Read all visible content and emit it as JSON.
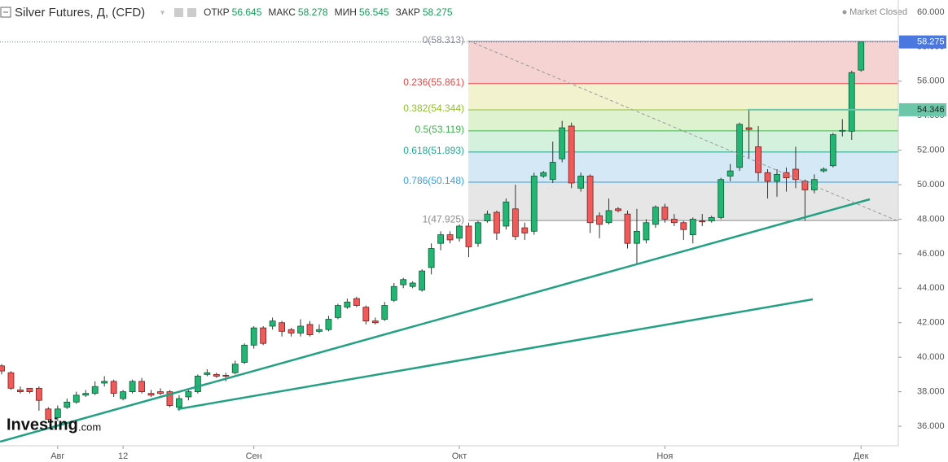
{
  "chart_data": {
    "type": "candlestick",
    "title": "Silver Futures, Д, (CFD)",
    "header_stats": [
      {
        "label": "ОТКР",
        "value": 56.645
      },
      {
        "label": "МАКС",
        "value": 58.278
      },
      {
        "label": "МИН",
        "value": 56.545
      },
      {
        "label": "ЗАКР",
        "value": 58.275
      }
    ],
    "status": "Market Closed",
    "logo": {
      "main": "Investing",
      "suffix": ".com"
    },
    "up_color": "#22b573",
    "down_color": "#ef5a5a",
    "categories": [
      null,
      null,
      null,
      null,
      null,
      null,
      "Авг",
      null,
      null,
      null,
      null,
      null,
      null,
      "12",
      null,
      null,
      null,
      null,
      null,
      null,
      null,
      null,
      null,
      null,
      null,
      null,
      null,
      "Сен",
      null,
      null,
      null,
      null,
      null,
      null,
      null,
      null,
      null,
      null,
      null,
      null,
      null,
      null,
      null,
      null,
      null,
      null,
      null,
      null,
      null,
      "Окт",
      null,
      null,
      null,
      null,
      null,
      null,
      null,
      null,
      null,
      null,
      null,
      null,
      null,
      null,
      null,
      null,
      null,
      null,
      null,
      null,
      null,
      "Ноя",
      null,
      null,
      null,
      null,
      null,
      null,
      null,
      null,
      null,
      null,
      null,
      null,
      null,
      null,
      null,
      null,
      null,
      null,
      null,
      null,
      "Дек"
    ],
    "open": [
      39.5,
      39.1,
      38.1,
      38.2,
      38.2,
      37.0,
      36.5,
      37.1,
      37.4,
      37.8,
      37.9,
      38.5,
      38.6,
      37.6,
      38.0,
      38.6,
      37.9,
      38.0,
      38.0,
      37.1,
      37.7,
      38.0,
      39.0,
      39.0,
      38.95,
      39.1,
      39.7,
      40.7,
      41.7,
      41.8,
      42.0,
      41.6,
      41.4,
      41.9,
      41.5,
      41.6,
      42.3,
      42.9,
      43.4,
      42.9,
      42.1,
      42.2,
      43.3,
      44.2,
      44.1,
      43.9,
      45.2,
      46.6,
      47.1,
      46.9,
      47.6,
      46.6,
      47.9,
      48.4,
      47.6,
      48.6,
      47.5,
      47.3,
      50.5,
      50.3,
      51.5,
      53.4,
      49.8,
      50.5,
      48.2,
      47.8,
      48.6,
      48.3,
      46.6,
      46.8,
      47.7,
      48.7,
      48.0,
      47.8,
      47.1,
      47.9,
      47.9,
      48.1,
      50.5,
      51.0,
      53.3,
      52.2,
      50.7,
      50.2,
      50.7,
      50.9,
      50.2,
      49.7,
      50.8,
      51.1,
      53.1,
      53.1,
      56.645
    ],
    "high": [
      39.6,
      39.2,
      38.3,
      38.2,
      38.3,
      37.1,
      37.2,
      37.6,
      38.0,
      38.1,
      38.6,
      38.9,
      38.7,
      38.1,
      38.7,
      38.8,
      38.1,
      38.2,
      38.1,
      37.8,
      38.1,
      39.0,
      39.3,
      39.1,
      39.1,
      39.8,
      40.8,
      41.8,
      41.8,
      42.3,
      42.1,
      41.7,
      42.2,
      42.1,
      41.9,
      42.4,
      43.1,
      43.4,
      43.5,
      43.0,
      42.3,
      43.2,
      44.3,
      44.6,
      44.4,
      45.1,
      46.6,
      47.3,
      47.3,
      47.7,
      47.8,
      47.9,
      48.5,
      48.5,
      49.2,
      50.0,
      47.8,
      50.7,
      50.8,
      52.5,
      53.7,
      53.6,
      50.7,
      50.6,
      48.4,
      49.2,
      48.7,
      48.5,
      48.6,
      48.0,
      48.8,
      48.9,
      48.3,
      47.9,
      48.1,
      48.3,
      48.2,
      50.4,
      51.2,
      53.6,
      54.3,
      53.4,
      50.9,
      50.9,
      51.0,
      52.2,
      50.3,
      50.6,
      51.0,
      53.0,
      53.8,
      56.6,
      58.278
    ],
    "low": [
      39.0,
      38.1,
      37.9,
      37.9,
      36.9,
      36.2,
      36.3,
      37.0,
      37.3,
      37.7,
      37.8,
      38.3,
      37.7,
      37.5,
      37.9,
      37.9,
      37.7,
      37.8,
      37.1,
      36.9,
      37.5,
      37.9,
      38.9,
      38.8,
      38.6,
      39.0,
      39.6,
      40.5,
      40.7,
      41.6,
      41.2,
      41.2,
      41.2,
      41.2,
      41.4,
      41.5,
      42.2,
      42.8,
      42.9,
      41.9,
      41.9,
      42.1,
      43.2,
      44.0,
      44.0,
      43.8,
      44.8,
      46.2,
      46.6,
      46.7,
      45.8,
      46.4,
      47.8,
      46.8,
      47.4,
      46.8,
      46.8,
      47.1,
      50.4,
      50.1,
      51.3,
      49.8,
      49.6,
      47.2,
      46.9,
      47.7,
      48.4,
      46.3,
      45.4,
      46.6,
      47.5,
      47.8,
      47.6,
      46.8,
      46.6,
      47.6,
      47.8,
      48.0,
      50.2,
      50.8,
      51.5,
      50.2,
      49.2,
      49.3,
      49.6,
      49.8,
      47.9,
      49.5,
      50.7,
      51.0,
      52.8,
      52.6,
      56.545
    ],
    "close": [
      39.2,
      38.2,
      38.0,
      38.0,
      37.5,
      36.4,
      37.0,
      37.4,
      37.8,
      37.9,
      38.3,
      38.6,
      37.9,
      38.0,
      38.6,
      38.0,
      37.8,
      37.9,
      37.2,
      37.6,
      38.0,
      38.9,
      39.1,
      38.9,
      38.9,
      39.6,
      40.7,
      41.7,
      40.8,
      42.1,
      41.5,
      41.4,
      41.8,
      41.3,
      41.6,
      42.2,
      43.0,
      43.2,
      43.0,
      42.1,
      42.0,
      43.0,
      44.1,
      44.5,
      44.3,
      45.0,
      46.3,
      47.1,
      46.8,
      47.6,
      46.4,
      47.8,
      48.3,
      47.2,
      49.0,
      47.0,
      47.2,
      50.5,
      50.7,
      51.3,
      53.3,
      50.1,
      50.5,
      47.8,
      47.7,
      48.5,
      48.5,
      46.6,
      47.3,
      47.8,
      48.7,
      48.0,
      47.8,
      47.4,
      48.0,
      47.85,
      48.1,
      50.3,
      50.8,
      53.5,
      53.2,
      50.7,
      50.2,
      50.6,
      50.4,
      50.3,
      49.7,
      50.3,
      50.9,
      52.9,
      53.15,
      56.5,
      58.275
    ],
    "ylim": [
      35.1,
      60.7
    ],
    "yticks": [
      {
        "value": 36,
        "label": "36.000"
      },
      {
        "value": 38,
        "label": "38.000"
      },
      {
        "value": 40,
        "label": "40.000"
      },
      {
        "value": 42,
        "label": "42.000"
      },
      {
        "value": 44,
        "label": "44.000"
      },
      {
        "value": 46,
        "label": "46.000"
      },
      {
        "value": 48,
        "label": "48.000"
      },
      {
        "value": 50,
        "label": "50.000"
      },
      {
        "value": 52,
        "label": "52.000"
      },
      {
        "value": 54,
        "label": "54.000"
      },
      {
        "value": 56,
        "label": "56.000"
      },
      {
        "value": 58,
        "label": "58.000"
      },
      {
        "value": 60,
        "label": "60.000"
      }
    ],
    "fib_levels": [
      {
        "label": "0(58.313)",
        "value": 58.313,
        "color": "#8a8a9a",
        "fill": "#f6d3d3"
      },
      {
        "label": "0.236(55.861)",
        "value": 55.861,
        "color": "#e04848",
        "fill": "#f2f2cf"
      },
      {
        "label": "0.382(54.344)",
        "value": 54.344,
        "color": "#8fbf2f",
        "fill": "#dff2d0"
      },
      {
        "label": "0.5(53.119)",
        "value": 53.119,
        "color": "#3fb24f",
        "fill": "#d3f1dc"
      },
      {
        "label": "0.618(51.893)",
        "value": 51.893,
        "color": "#20a890",
        "fill": "#d4e9f5"
      },
      {
        "label": "0.786(50.148)",
        "value": 50.148,
        "color": "#3a9fe0",
        "fill": "#e6e6e6"
      },
      {
        "label": "1(47.925)",
        "value": 47.925,
        "color": "#8a8a8a"
      }
    ],
    "last_price": {
      "label": "58.275",
      "value": 58.275,
      "color": "#4a78e0"
    },
    "marker_price": {
      "label": "54.346",
      "value": 54.346,
      "color": "#6cc7a8"
    }
  }
}
